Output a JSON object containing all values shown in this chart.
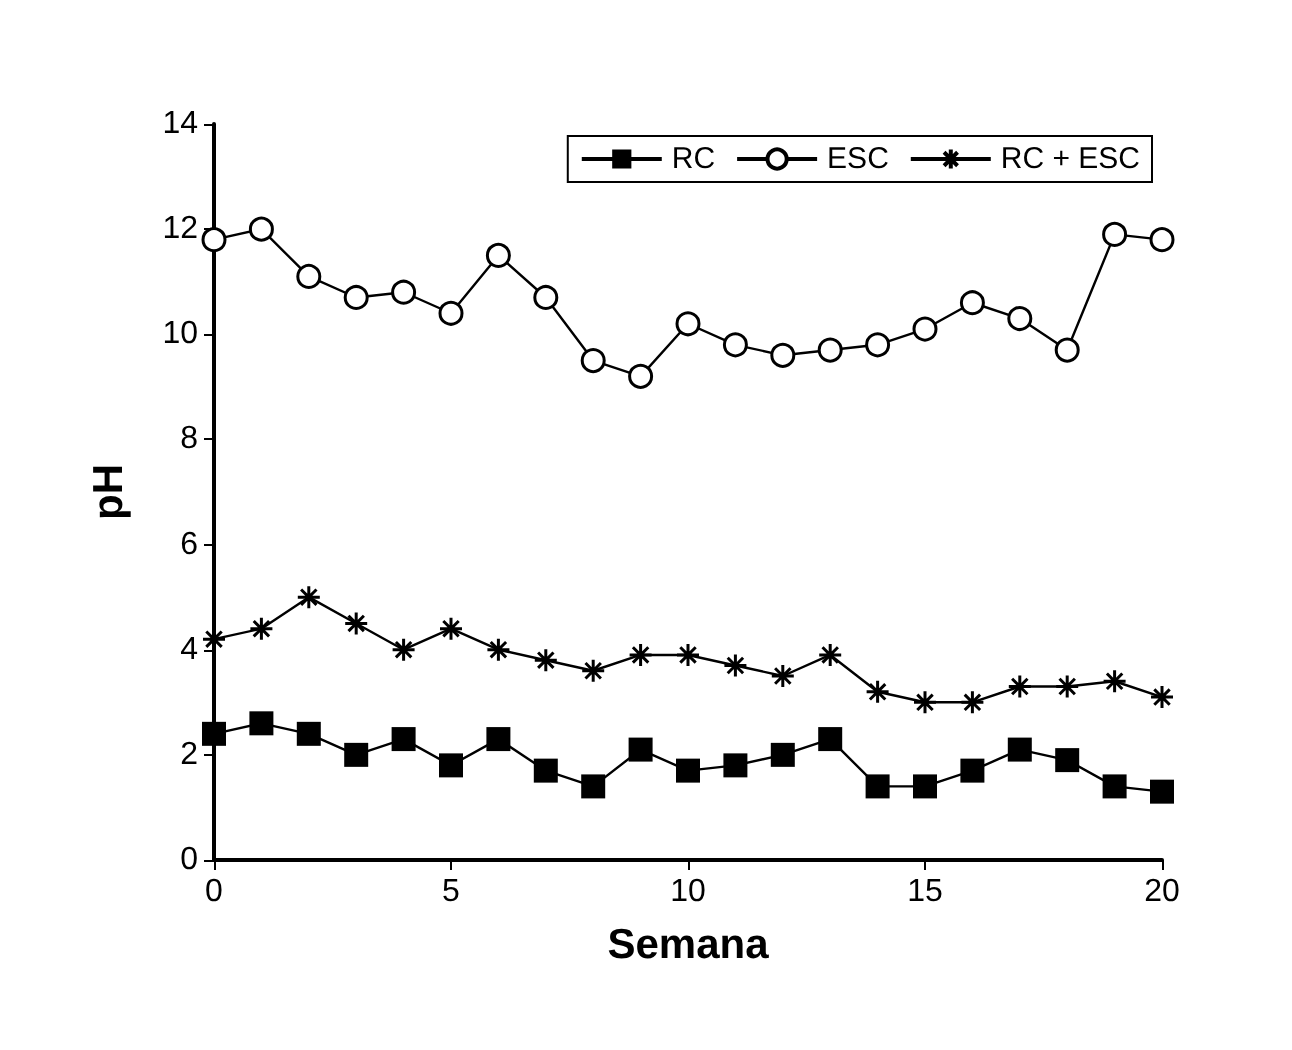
{
  "chart_data": {
    "type": "line",
    "xlabel": "Semana",
    "ylabel": "pH",
    "x": [
      0,
      1,
      2,
      3,
      4,
      5,
      6,
      7,
      8,
      9,
      10,
      11,
      12,
      13,
      14,
      15,
      16,
      17,
      18,
      19,
      20
    ],
    "series": [
      {
        "name": "RC",
        "color": "#000000",
        "marker": "square",
        "values": [
          2.4,
          2.6,
          2.4,
          2.0,
          2.3,
          1.8,
          2.3,
          1.7,
          1.4,
          2.1,
          1.7,
          1.8,
          2.0,
          2.3,
          1.4,
          1.4,
          1.7,
          2.1,
          1.9,
          1.4,
          1.3
        ]
      },
      {
        "name": "ESC",
        "color": "#000000",
        "marker": "circle",
        "values": [
          11.8,
          12.0,
          11.1,
          10.7,
          10.8,
          10.4,
          11.5,
          10.7,
          9.5,
          9.2,
          10.2,
          9.8,
          9.6,
          9.7,
          9.8,
          10.1,
          10.6,
          10.3,
          9.7,
          11.9,
          11.8
        ]
      },
      {
        "name": "RC + ESC",
        "color": "#000000",
        "marker": "cross",
        "values": [
          4.2,
          4.4,
          5.0,
          4.5,
          4.0,
          4.4,
          4.0,
          3.8,
          3.6,
          3.9,
          3.9,
          3.7,
          3.5,
          3.9,
          3.2,
          3.0,
          3.0,
          3.3,
          3.3,
          3.4,
          3.1
        ]
      }
    ],
    "xlim": [
      0,
      20
    ],
    "xticks": [
      0,
      5,
      10,
      15,
      20
    ],
    "ylim": [
      0,
      14
    ],
    "yticks": [
      0,
      2,
      4,
      6,
      8,
      10,
      12,
      14
    ],
    "grid": false,
    "legend": "top right",
    "line_style": "solid"
  }
}
